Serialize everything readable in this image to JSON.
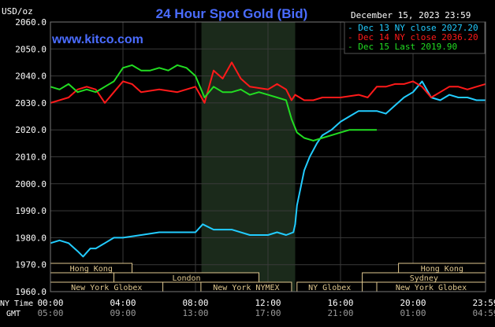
{
  "chart_data": {
    "type": "line",
    "title": "24 Hour Spot Gold (Bid)",
    "watermark": "www.kitco.com",
    "unit": "USD/oz",
    "date_label": "December 15, 2023 23:59",
    "ylim": [
      1960,
      2060
    ],
    "yticks": [
      "2060.0",
      "2050.0",
      "2040.0",
      "2030.0",
      "2020.0",
      "2010.0",
      "2000.0",
      "1990.0",
      "1980.0",
      "1970.0",
      "1960.0"
    ],
    "xrow1_label": "NY Time",
    "xrow2_label": "GMT",
    "xticks_ny": [
      "00:00",
      "04:00",
      "08:00",
      "12:00",
      "16:00",
      "20:00",
      "23:59"
    ],
    "xticks_gmt": [
      "05:00",
      "09:00",
      "13:00",
      "17:00",
      "21:00",
      "01:00",
      "04:59"
    ],
    "shaded_session_hours": [
      8.33,
      13.5
    ],
    "colors": {
      "dec13": "#22ccff",
      "dec14": "#ff1a1a",
      "dec15": "#22dd22",
      "text_blue": "#4a6cff",
      "grid": "#3a3a3a",
      "band": "#e0c890"
    },
    "legend": [
      {
        "label": "Dec 13 NY close 2027.20",
        "color": "#22ccff"
      },
      {
        "label": "Dec 14 NY close 2036.20",
        "color": "#ff1a1a"
      },
      {
        "label": "Dec 15 Last 2019.90",
        "color": "#22dd22"
      }
    ],
    "sessions": [
      {
        "name": "Hong Kong",
        "row": 0,
        "start": 0,
        "end": 4.5
      },
      {
        "name": "Hong Kong",
        "row": 0,
        "start": 19.2,
        "end": 24
      },
      {
        "name": "London",
        "row": 1,
        "start": 3.5,
        "end": 11.5
      },
      {
        "name": "Sydney",
        "row": 1,
        "start": 17.2,
        "end": 24
      },
      {
        "name": "New York Globex",
        "row": 2,
        "start": 0,
        "end": 6.2
      },
      {
        "name": "New York NYMEX",
        "row": 2,
        "start": 8.3,
        "end": 13.3
      },
      {
        "name": "NY Globex",
        "row": 2,
        "start": 13.6,
        "end": 17.2
      },
      {
        "name": "New York Globex",
        "row": 2,
        "start": 18,
        "end": 24
      }
    ],
    "series": [
      {
        "name": "Dec 13 NY close 2027.20",
        "color": "#22ccff",
        "x": [
          0,
          0.5,
          1,
          1.5,
          1.8,
          2.2,
          2.5,
          3,
          3.5,
          4,
          5,
          6,
          7,
          8,
          8.4,
          9,
          10,
          11,
          12,
          12.5,
          13,
          13.4,
          13.5,
          13.6,
          14,
          14.3,
          14.7,
          15,
          15.5,
          16,
          16.5,
          17,
          17.2,
          18,
          18.5,
          19,
          19.5,
          20,
          20.5,
          21,
          21.5,
          22,
          22.5,
          23,
          23.5,
          24
        ],
        "y": [
          1978,
          1979,
          1978,
          1975,
          1973,
          1976,
          1976,
          1978,
          1980,
          1980,
          1981,
          1982,
          1982,
          1982,
          1985,
          1983,
          1983,
          1981,
          1981,
          1982,
          1981,
          1982,
          1985,
          1992,
          2005,
          2010,
          2015,
          2018,
          2020,
          2023,
          2025,
          2027,
          2027,
          2027,
          2026,
          2029,
          2032,
          2034,
          2038,
          2032,
          2031,
          2033,
          2032,
          2032,
          2031,
          2031
        ]
      },
      {
        "name": "Dec 14 NY close 2036.20",
        "color": "#ff1a1a",
        "x": [
          0,
          0.5,
          1,
          1.5,
          2,
          2.5,
          3,
          3.5,
          4,
          4.5,
          5,
          6,
          7,
          8,
          8.5,
          9,
          9.5,
          10,
          10.5,
          11,
          12,
          12.5,
          13,
          13.3,
          13.5,
          14,
          14.5,
          15,
          16,
          17,
          17.5,
          18,
          18.5,
          19,
          19.5,
          20,
          20.5,
          21,
          21.5,
          22,
          22.5,
          23,
          23.5,
          24
        ],
        "y": [
          2030,
          2031,
          2032,
          2035,
          2036,
          2035,
          2030,
          2034,
          2038,
          2037,
          2034,
          2035,
          2034,
          2036,
          2030,
          2042,
          2039,
          2045,
          2039,
          2036,
          2035,
          2037,
          2035,
          2031,
          2033,
          2031,
          2031,
          2032,
          2032,
          2033,
          2032,
          2036,
          2036,
          2037,
          2037,
          2038,
          2036,
          2032,
          2034,
          2036,
          2036,
          2035,
          2036,
          2037
        ]
      },
      {
        "name": "Dec 15 Last 2019.90",
        "color": "#22dd22",
        "x": [
          0,
          0.5,
          1,
          1.5,
          2,
          2.5,
          3,
          3.5,
          4,
          4.5,
          5,
          5.5,
          6,
          6.5,
          7,
          7.5,
          8,
          8.5,
          9,
          9.5,
          10,
          10.5,
          11,
          11.5,
          12,
          12.5,
          13,
          13.3,
          13.6,
          14,
          14.5,
          15,
          15.5,
          16,
          16.5,
          17,
          17.5,
          18
        ],
        "y": [
          2036,
          2035,
          2037,
          2034,
          2035,
          2034,
          2036,
          2038,
          2043,
          2044,
          2042,
          2042,
          2043,
          2042,
          2044,
          2043,
          2040,
          2032,
          2036,
          2034,
          2034,
          2035,
          2033,
          2034,
          2033,
          2032,
          2031,
          2024,
          2019,
          2017,
          2016,
          2017,
          2018,
          2019,
          2020,
          2020,
          2020,
          2020
        ]
      }
    ]
  }
}
